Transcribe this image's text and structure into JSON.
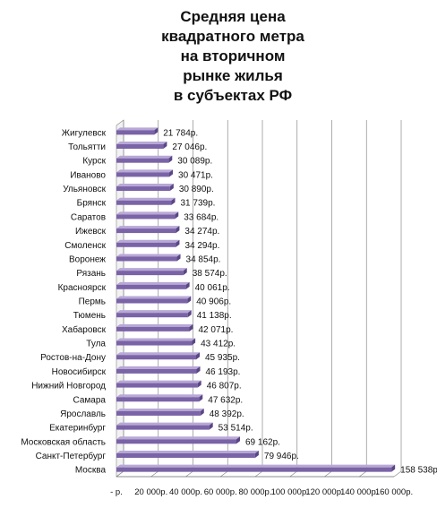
{
  "chart_data": {
    "type": "bar",
    "orientation": "horizontal",
    "title": "Средняя цена\nквадратного метра\nна вторичном\nрынке жилья\nв субъектах РФ",
    "categories": [
      "Жигулевск",
      "Тольятти",
      "Курск",
      "Иваново",
      "Ульяновск",
      "Брянск",
      "Саратов",
      "Ижевск",
      "Смоленск",
      "Воронеж",
      "Рязань",
      "Красноярск",
      "Пермь",
      "Тюмень",
      "Хабаровск",
      "Тула",
      "Ростов-на-Дону",
      "Новосибирск",
      "Нижний Новгород",
      "Самара",
      "Ярославль",
      "Екатеринбург",
      "Московская область",
      "Санкт-Петербург",
      "Москва"
    ],
    "values": [
      21784,
      27046,
      30089,
      30471,
      30890,
      31739,
      33684,
      34274,
      34294,
      34854,
      38574,
      40061,
      40906,
      41138,
      42071,
      43412,
      45935,
      46193,
      46807,
      47632,
      48392,
      53514,
      69162,
      79946,
      158538
    ],
    "value_labels": [
      "21 784р.",
      "27 046р.",
      "30 089р.",
      "30 471р.",
      "30 890р.",
      "31 739р.",
      "33 684р.",
      "34 274р.",
      "34 294р.",
      "34 854р.",
      "38 574р.",
      "40 061р.",
      "40 906р.",
      "41 138р.",
      "42 071р.",
      "43 412р.",
      "45 935р.",
      "46 193р.",
      "46 807р.",
      "47 632р.",
      "48 392р.",
      "53 514р.",
      "69 162р.",
      "79 946р.",
      "158 538р."
    ],
    "x_ticks": [
      "- р.",
      "20 000р.",
      "40 000р.",
      "60 000р.",
      "80 000р.",
      "100 000р.",
      "120 000р.",
      "140 000р.",
      "160 000р."
    ],
    "xlim": [
      0,
      160000
    ],
    "grid": true,
    "bar_color": "#7a63a6"
  }
}
